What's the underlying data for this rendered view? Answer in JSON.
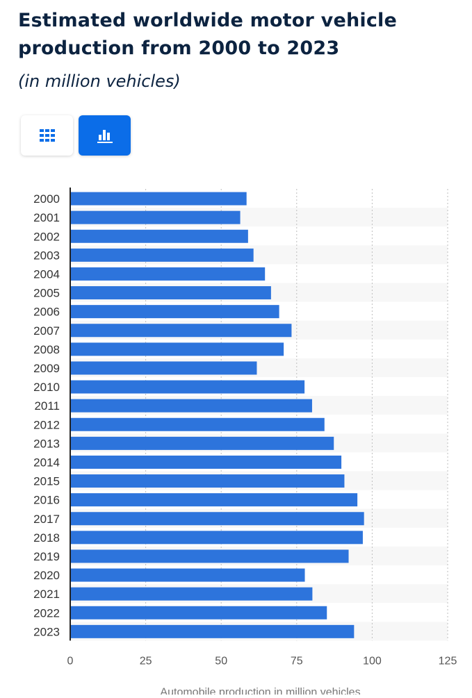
{
  "header": {
    "title_line1": "Estimated worldwide motor vehicle",
    "title_line2": "production from 2000 to 2023",
    "subtitle": "(in million vehicles)"
  },
  "view_toggle": {
    "table_icon": "grid-table-icon",
    "chart_icon": "bar-chart-icon",
    "active": "chart"
  },
  "colors": {
    "bar": "#2d74dc",
    "title": "#0c2340",
    "toggle_active": "#0b6de8",
    "band": "#f7f7f7",
    "grid": "#bdbdbd",
    "label": "#555555"
  },
  "chart_data": {
    "type": "bar",
    "orientation": "horizontal",
    "categories": [
      "2000",
      "2001",
      "2002",
      "2003",
      "2004",
      "2005",
      "2006",
      "2007",
      "2008",
      "2009",
      "2010",
      "2011",
      "2012",
      "2013",
      "2014",
      "2015",
      "2016",
      "2017",
      "2018",
      "2019",
      "2020",
      "2021",
      "2022",
      "2023"
    ],
    "values": [
      58.4,
      56.3,
      58.9,
      60.7,
      64.5,
      66.5,
      69.2,
      73.3,
      70.7,
      61.8,
      77.6,
      80.1,
      84.2,
      87.3,
      89.8,
      90.8,
      95.1,
      97.3,
      96.9,
      92.2,
      77.7,
      80.2,
      85.0,
      94.0
    ],
    "xlabel": "Automobile production in million vehicles",
    "ylabel": "",
    "xlim": [
      0,
      125
    ],
    "x_ticks": [
      0,
      25,
      50,
      75,
      100,
      125
    ],
    "x_tick_labels": [
      "0",
      "25",
      "50",
      "75",
      "100",
      "125"
    ],
    "grid": "vertical-dotted",
    "alternating_row_bands": true
  }
}
